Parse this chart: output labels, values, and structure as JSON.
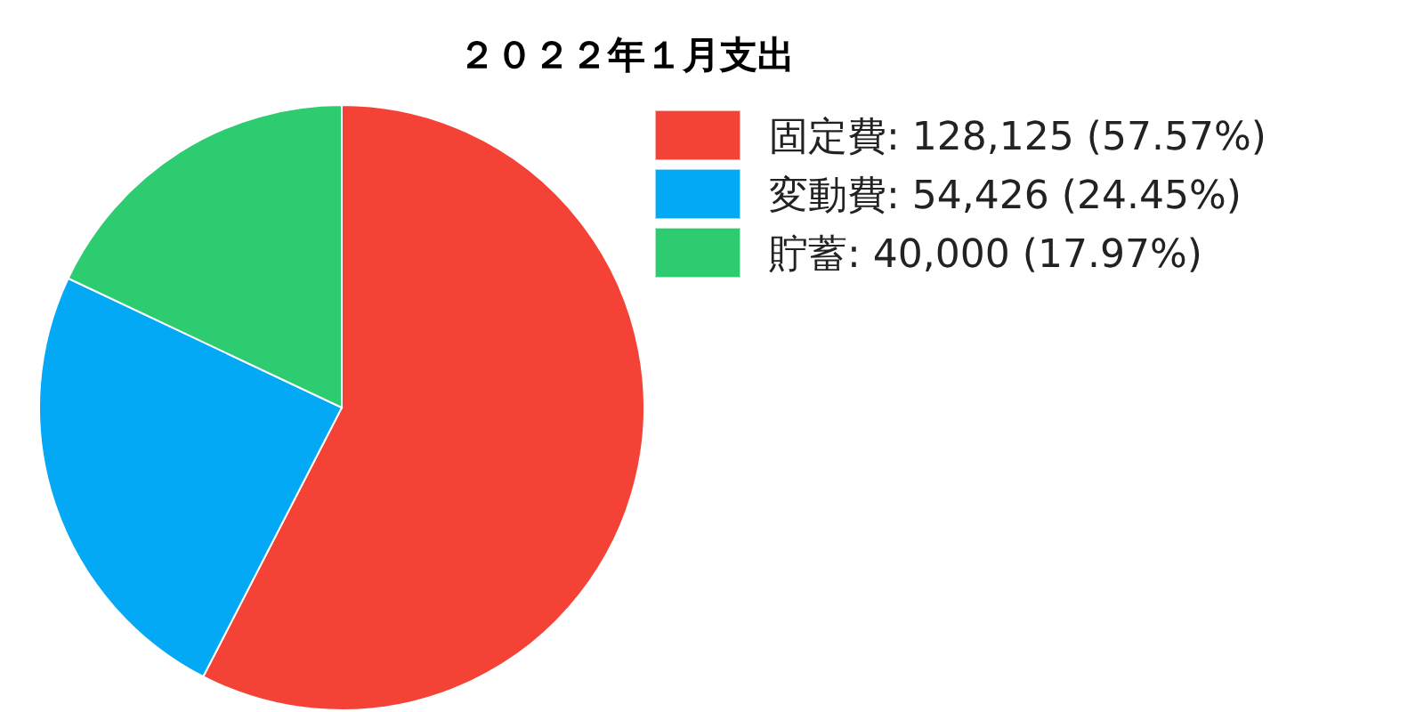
{
  "chart_data": {
    "type": "pie",
    "title": "２０２２年１月支出",
    "categories": [
      "固定費",
      "変動費",
      "貯蓄"
    ],
    "values": [
      128125,
      54426,
      40000
    ],
    "value_labels": [
      "128,125 (57.57%)",
      "54,426 (24.45%)",
      "40,000 (17.97%)"
    ],
    "colors": [
      "#f44336",
      "#03a9f4",
      "#2ecc71"
    ],
    "legend": "top right"
  }
}
